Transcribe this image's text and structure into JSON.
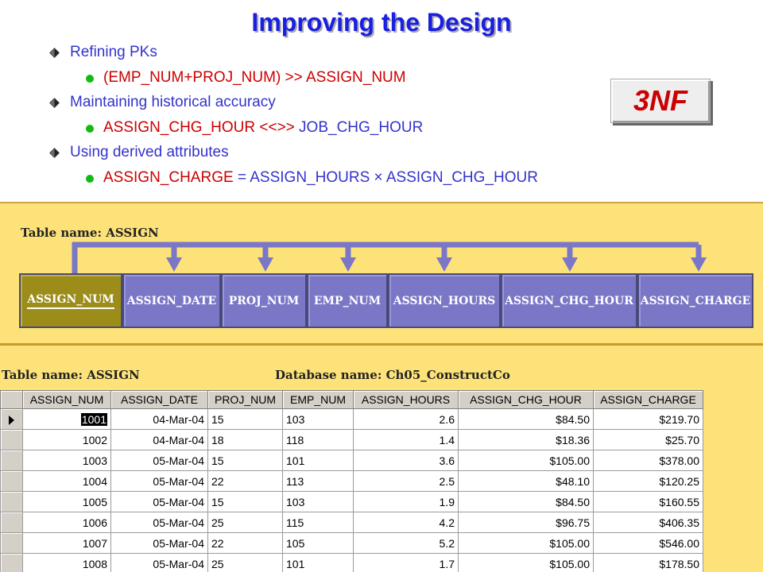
{
  "title": "Improving the Design",
  "bullets": [
    {
      "text": "Refining PKs",
      "sub": {
        "red": "(EMP_NUM+PROJ_NUM) >> ASSIGN_NUM",
        "blue": ""
      }
    },
    {
      "text": "Maintaining historical accuracy",
      "sub": {
        "red": "ASSIGN_CHG_HOUR <<>> ",
        "blue": "JOB_CHG_HOUR"
      }
    },
    {
      "text": "Using derived attributes",
      "sub": {
        "red": "ASSIGN_CHARGE ",
        "blue": "= ASSIGN_HOURS × ASSIGN_CHG_HOUR"
      }
    }
  ],
  "badge": "3NF",
  "dependency": {
    "table_label": "Table name: ASSIGN",
    "attributes": [
      "ASSIGN_NUM",
      "ASSIGN_DATE",
      "PROJ_NUM",
      "EMP_NUM",
      "ASSIGN_HOURS",
      "ASSIGN_CHG_HOUR",
      "ASSIGN_CHARGE"
    ]
  },
  "grid": {
    "table_label": "Table name: ASSIGN",
    "db_label": "Database name: Ch05_ConstructCo",
    "columns": [
      "ASSIGN_NUM",
      "ASSIGN_DATE",
      "PROJ_NUM",
      "EMP_NUM",
      "ASSIGN_HOURS",
      "ASSIGN_CHG_HOUR",
      "ASSIGN_CHARGE"
    ],
    "rows": [
      [
        "1001",
        "04-Mar-04",
        "15",
        "103",
        "2.6",
        "$84.50",
        "$219.70"
      ],
      [
        "1002",
        "04-Mar-04",
        "18",
        "118",
        "1.4",
        "$18.36",
        "$25.70"
      ],
      [
        "1003",
        "05-Mar-04",
        "15",
        "101",
        "3.6",
        "$105.00",
        "$378.00"
      ],
      [
        "1004",
        "05-Mar-04",
        "22",
        "113",
        "2.5",
        "$48.10",
        "$120.25"
      ],
      [
        "1005",
        "05-Mar-04",
        "15",
        "103",
        "1.9",
        "$84.50",
        "$160.55"
      ],
      [
        "1006",
        "05-Mar-04",
        "25",
        "115",
        "4.2",
        "$96.75",
        "$406.35"
      ],
      [
        "1007",
        "05-Mar-04",
        "22",
        "105",
        "5.2",
        "$105.00",
        "$546.00"
      ],
      [
        "1008",
        "05-Mar-04",
        "25",
        "101",
        "1.7",
        "$105.00",
        "$178.50"
      ]
    ]
  },
  "colors": {
    "title": "#1a1fe0",
    "panel": "#fde27a",
    "attr_box": "#7b77c7",
    "pk_box": "#9c8d1a",
    "red_text": "#cc0000",
    "blue_text": "#3333cc",
    "bullet_green": "#11bb11"
  }
}
